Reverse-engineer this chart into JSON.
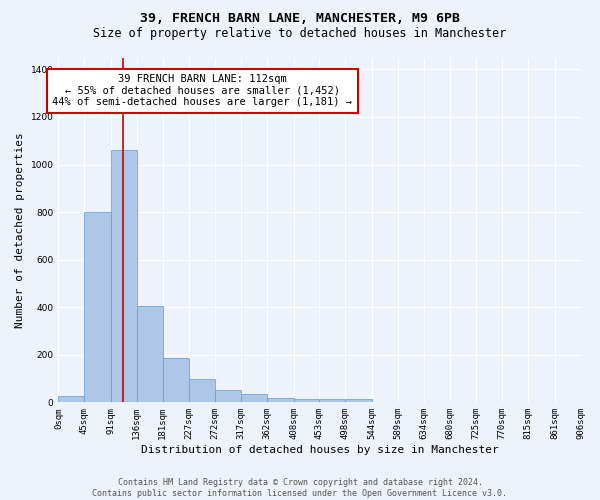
{
  "title1": "39, FRENCH BARN LANE, MANCHESTER, M9 6PB",
  "title2": "Size of property relative to detached houses in Manchester",
  "xlabel": "Distribution of detached houses by size in Manchester",
  "ylabel": "Number of detached properties",
  "bar_color": "#aec6e8",
  "bar_edge_color": "#5a9fd4",
  "background_color": "#eef2fb",
  "grid_color": "#ffffff",
  "property_line_x": 112,
  "property_line_color": "#cc0000",
  "annotation_line1": "39 FRENCH BARN LANE: 112sqm",
  "annotation_line2": "← 55% of detached houses are smaller (1,452)",
  "annotation_line3": "44% of semi-detached houses are larger (1,181) →",
  "annotation_box_color": "#ffffff",
  "annotation_box_edge_color": "#cc0000",
  "bin_edges": [
    0,
    45,
    91,
    136,
    181,
    227,
    272,
    317,
    362,
    408,
    453,
    498,
    544,
    589,
    634,
    680,
    725,
    770,
    815,
    861,
    906
  ],
  "bar_heights": [
    25,
    800,
    1060,
    405,
    185,
    100,
    50,
    35,
    20,
    15,
    15,
    15,
    0,
    0,
    0,
    0,
    0,
    0,
    0,
    0
  ],
  "ylim": [
    0,
    1450
  ],
  "yticks": [
    0,
    200,
    400,
    600,
    800,
    1000,
    1200,
    1400
  ],
  "footer_text": "Contains HM Land Registry data © Crown copyright and database right 2024.\nContains public sector information licensed under the Open Government Licence v3.0.",
  "title1_fontsize": 9.5,
  "title2_fontsize": 8.5,
  "xlabel_fontsize": 8,
  "ylabel_fontsize": 8,
  "tick_fontsize": 6.5,
  "annotation_fontsize": 7.5,
  "footer_fontsize": 6
}
